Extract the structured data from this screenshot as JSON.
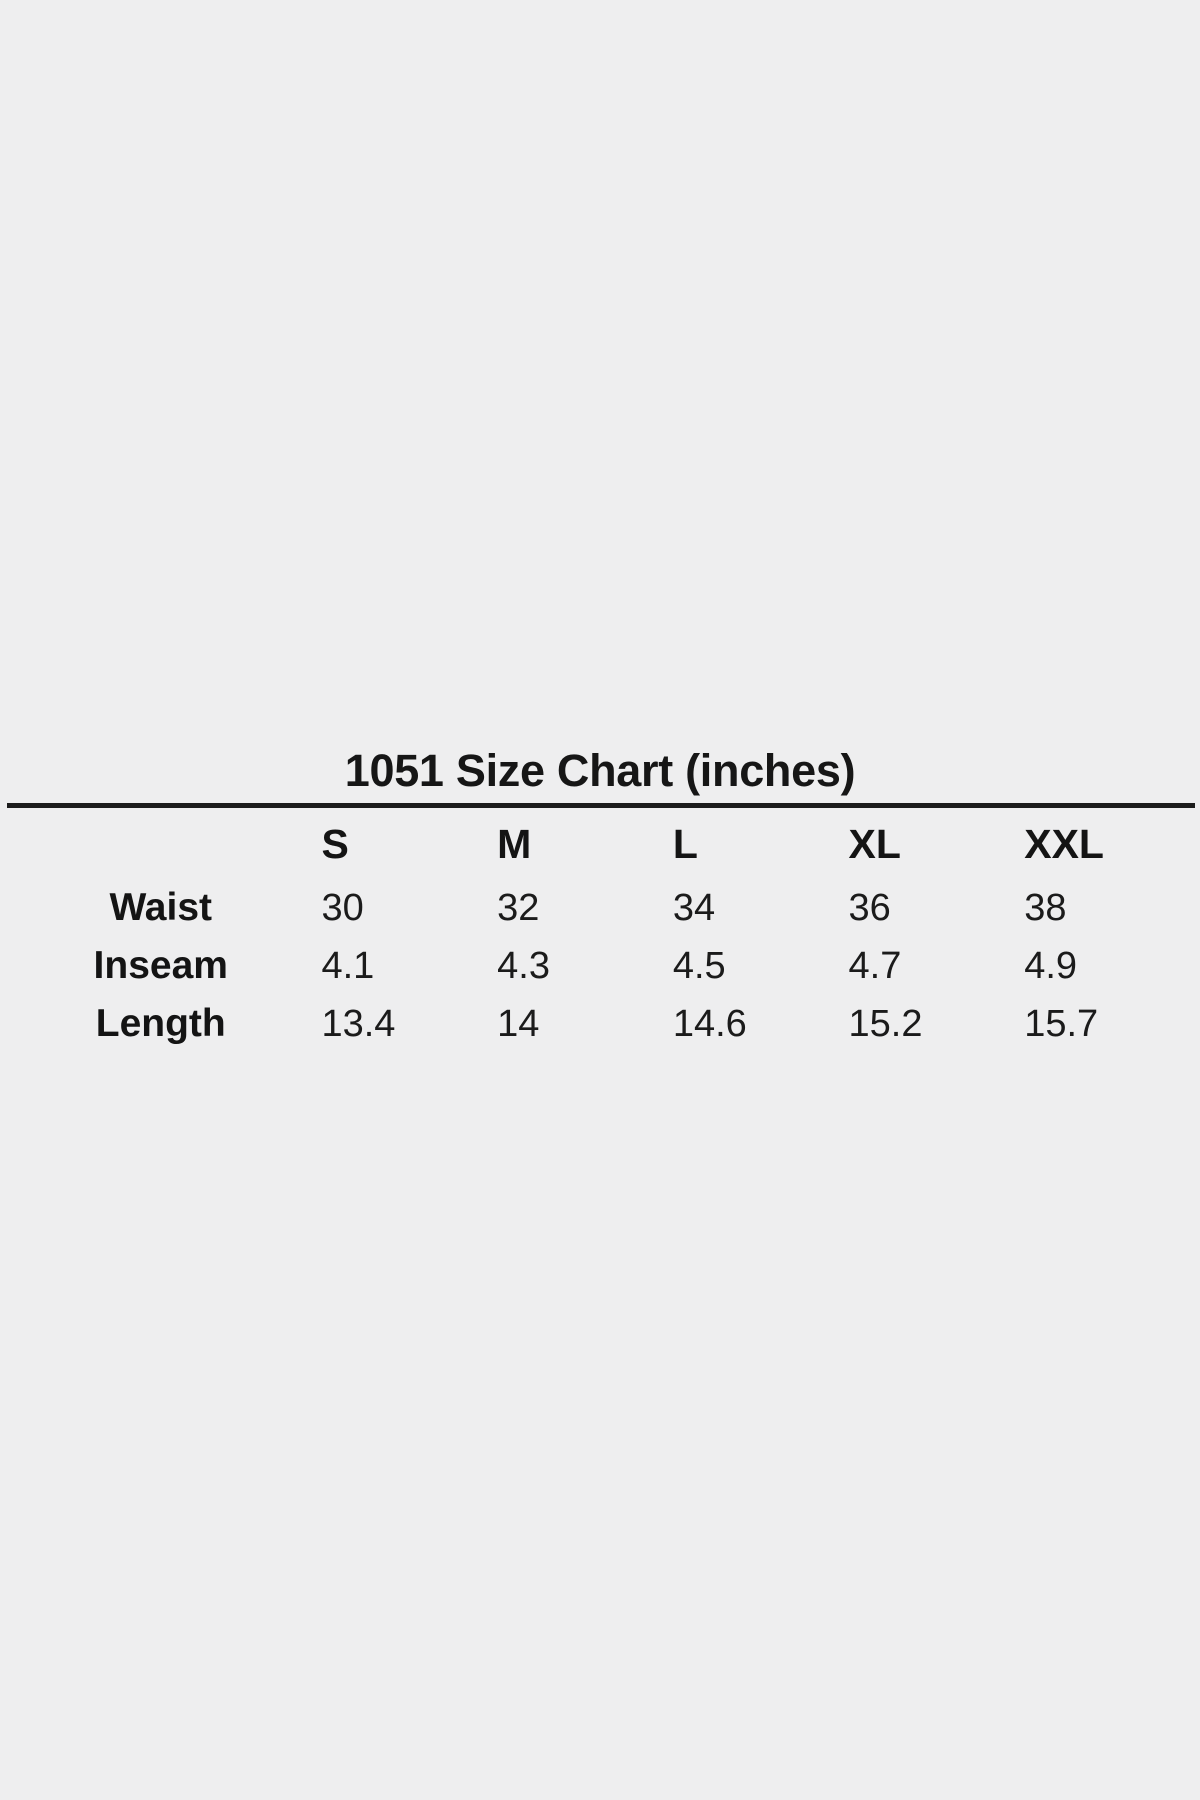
{
  "colors": {
    "background": "#eeeeef",
    "text": "#161616",
    "divider": "#1c1c1c"
  },
  "size_chart": {
    "title": "1051 Size Chart (inches)",
    "columns": [
      "S",
      "M",
      "L",
      "XL",
      "XXL"
    ],
    "rows": [
      {
        "label": "Waist",
        "values": [
          "30",
          "32",
          "34",
          "36",
          "38"
        ]
      },
      {
        "label": "Inseam",
        "values": [
          "4.1",
          "4.3",
          "4.5",
          "4.7",
          "4.9"
        ]
      },
      {
        "label": "Length",
        "values": [
          "13.4",
          "14",
          "14.6",
          "15.2",
          "15.7"
        ]
      }
    ]
  }
}
